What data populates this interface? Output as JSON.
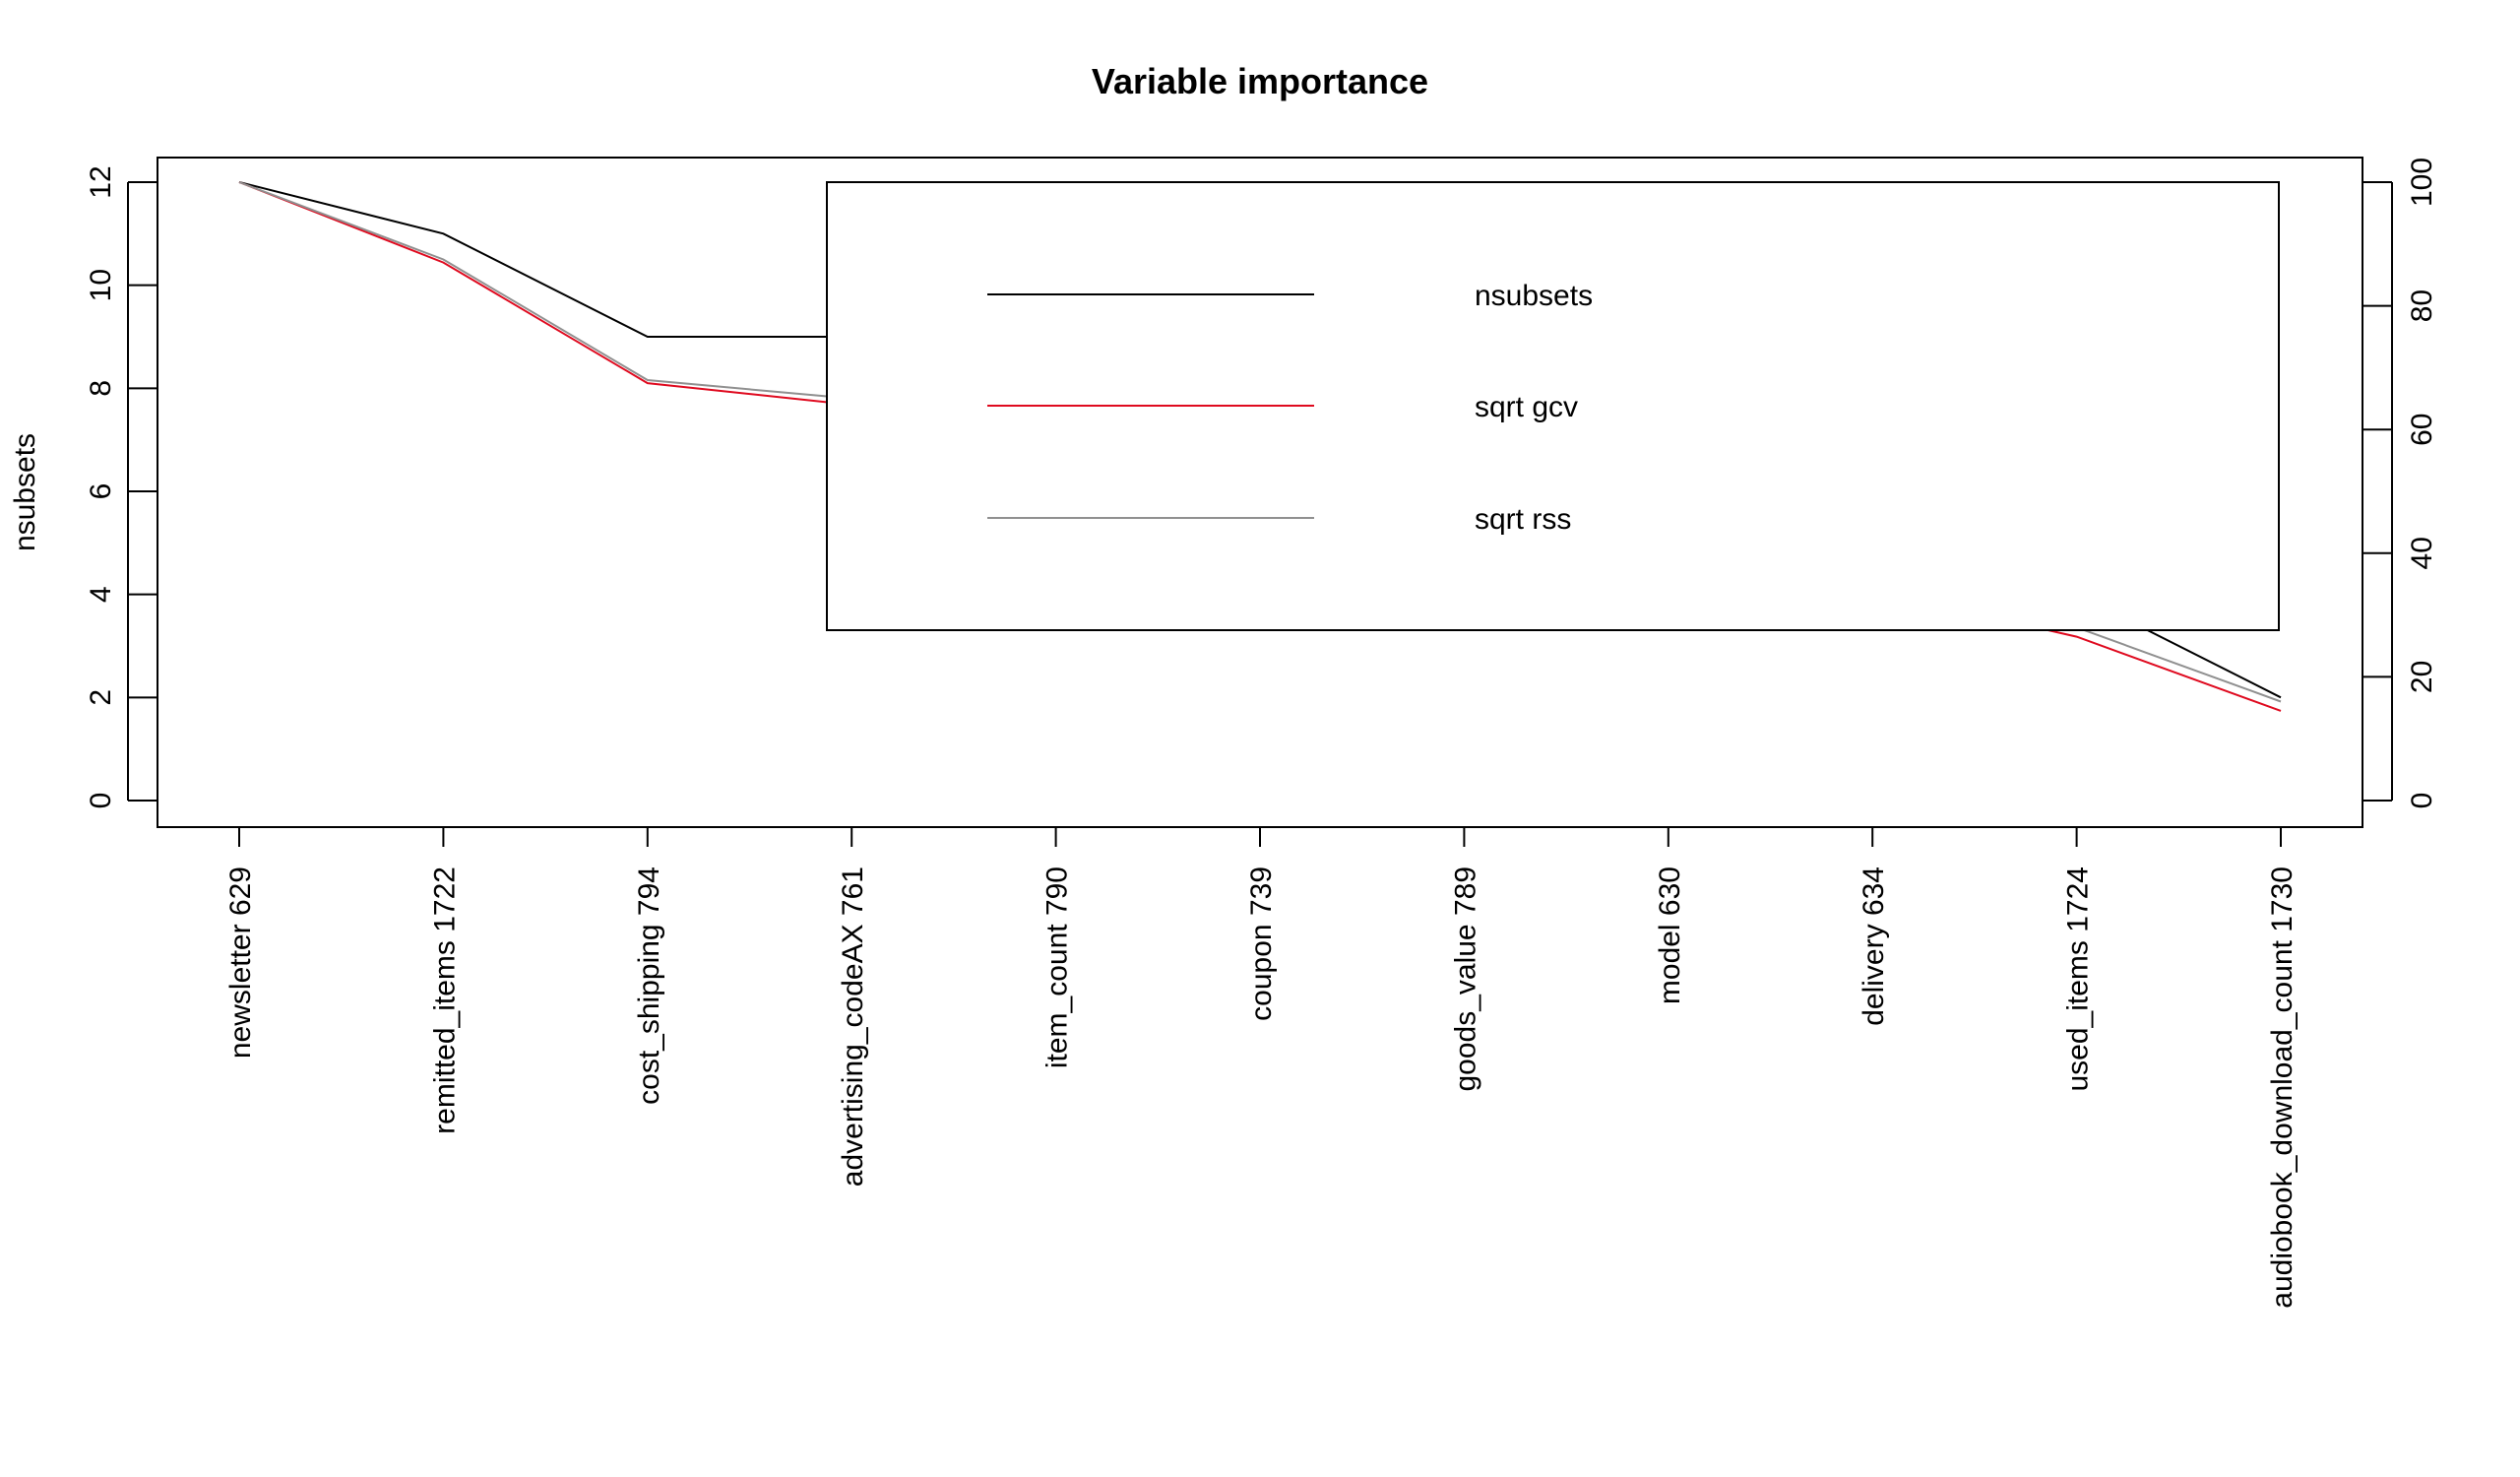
{
  "chart_data": {
    "type": "line",
    "title": "Variable importance",
    "ylabel": "nsubsets",
    "ylabel_right": "",
    "xlabel": "",
    "categories": [
      "newsletter 629",
      "remitted_items 1722",
      "cost_shipping 794",
      "advertising_codeAX 761",
      "item_count 790",
      "coupon 739",
      "goods_value 789",
      "model 630",
      "delivery 634",
      "used_items 1724",
      "audiobook_download_count 1730"
    ],
    "ylim_left": [
      0,
      12
    ],
    "yticks_left": [
      "0",
      "2",
      "4",
      "6",
      "8",
      "10",
      "12"
    ],
    "ylim_right": [
      0,
      100
    ],
    "yticks_right": [
      "0",
      "20",
      "40",
      "60",
      "80",
      "100"
    ],
    "grid": false,
    "legend_position": "top-right",
    "series": [
      {
        "name": "nsubsets",
        "axis": "left",
        "color": "#000000",
        "values": [
          12,
          11,
          9,
          9,
          8,
          7,
          6,
          5,
          5,
          4,
          2
        ]
      },
      {
        "name": "sqrt gcv",
        "axis": "right",
        "color": "#df0a1f",
        "values": [
          100,
          87,
          67.5,
          64,
          58,
          52,
          46,
          40,
          34,
          26.5,
          14.5
        ]
      },
      {
        "name": "sqrt rss",
        "axis": "right",
        "color": "#909090",
        "values": [
          100,
          87.5,
          68,
          65,
          59,
          53,
          47,
          41,
          35,
          28,
          16
        ]
      }
    ]
  }
}
